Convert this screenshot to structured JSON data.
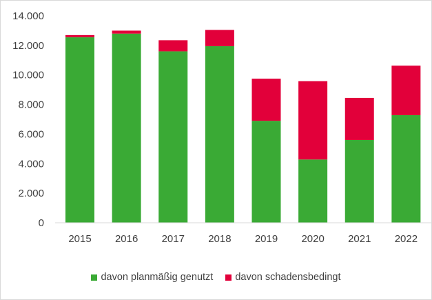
{
  "chart_data": {
    "type": "bar",
    "stacked": true,
    "categories": [
      "2015",
      "2016",
      "2017",
      "2018",
      "2019",
      "2020",
      "2021",
      "2022"
    ],
    "series": [
      {
        "name": "davon planmäßig genutzt",
        "color": "#3aaa35",
        "values": [
          12550,
          12800,
          11600,
          11950,
          6900,
          4280,
          5600,
          7280
        ]
      },
      {
        "name": "davon schadensbedingt",
        "color": "#e2003a",
        "values": [
          150,
          200,
          750,
          1100,
          2850,
          5300,
          2850,
          3350
        ]
      }
    ],
    "ylim": [
      0,
      14000
    ],
    "y_ticks": [
      "0",
      "2.000",
      "4.000",
      "6.000",
      "8.000",
      "10.000",
      "12.000",
      "14.000"
    ],
    "grid": false,
    "legend_position": "bottom"
  }
}
